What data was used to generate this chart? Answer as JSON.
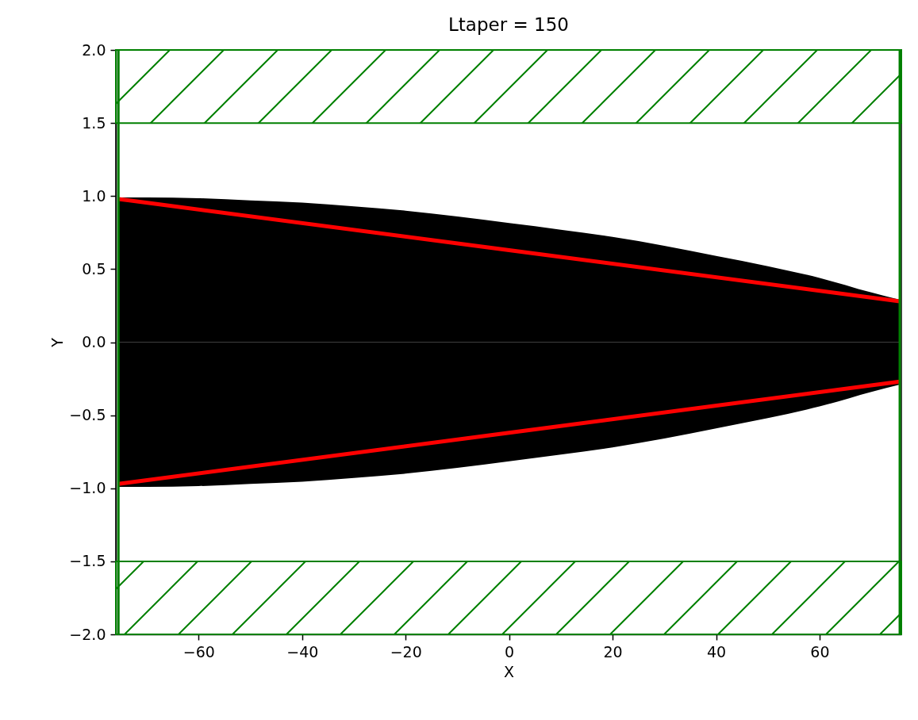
{
  "chart_data": {
    "type": "area",
    "title": "Ltaper = 150",
    "xlabel": "X",
    "ylabel": "Y",
    "xlim": [
      -76,
      75.8
    ],
    "ylim": [
      -2.0,
      2.0
    ],
    "xticks": [
      -60,
      -40,
      -20,
      0,
      20,
      40,
      60
    ],
    "yticks": [
      {
        "value": -2,
        "label": "−2.0"
      },
      {
        "value": -1.5,
        "label": "−1.5"
      },
      {
        "value": -1,
        "label": "−1.0"
      },
      {
        "value": -0.5,
        "label": "−0.5"
      },
      {
        "value": 0,
        "label": "0.0"
      },
      {
        "value": 0.5,
        "label": "0.5"
      },
      {
        "value": 1,
        "label": "1.0"
      },
      {
        "value": 1.5,
        "label": "1.5"
      },
      {
        "value": 2,
        "label": "2.0"
      }
    ],
    "grid": false,
    "series": [
      {
        "color": "#000000",
        "x": [
          -75.5,
          -70,
          -60,
          -50,
          -40,
          -30,
          -20,
          -10,
          0,
          10,
          20,
          30,
          40,
          50,
          60,
          70,
          75.5
        ],
        "values": [
          0.99,
          0.99,
          0.985,
          0.97,
          0.955,
          0.93,
          0.9,
          0.86,
          0.815,
          0.77,
          0.72,
          0.66,
          0.59,
          0.52,
          0.44,
          0.34,
          0.29
        ]
      },
      {
        "color": "#000000",
        "x": [
          -75.5,
          -70,
          -60,
          -50,
          -40,
          -30,
          -20,
          -10,
          0,
          10,
          20,
          30,
          40,
          50,
          60,
          70,
          75.5
        ],
        "values": [
          -0.99,
          -0.99,
          -0.985,
          -0.97,
          -0.955,
          -0.93,
          -0.9,
          -0.86,
          -0.815,
          -0.77,
          -0.72,
          -0.66,
          -0.59,
          -0.52,
          -0.44,
          -0.34,
          -0.29
        ]
      },
      {
        "type": "line",
        "color": "#ff0000",
        "x": [
          -75.5,
          0,
          75.5
        ],
        "values": [
          0.98,
          0.63,
          0.28
        ]
      },
      {
        "type": "line",
        "color": "#ff0000",
        "x": [
          -75.5,
          0,
          75.5
        ],
        "values": [
          -0.97,
          -0.62,
          -0.27
        ]
      }
    ],
    "bands": [
      {
        "axis": "y",
        "from": 1.5,
        "to": 2.0,
        "color": "#008000"
      },
      {
        "axis": "y",
        "from": -2.0,
        "to": -1.5,
        "color": "#008000"
      }
    ],
    "ref_lines": [
      {
        "axis": "x",
        "value": -75.5,
        "color": "#008000"
      },
      {
        "axis": "x",
        "value": 75.5,
        "color": "#008000"
      }
    ]
  }
}
